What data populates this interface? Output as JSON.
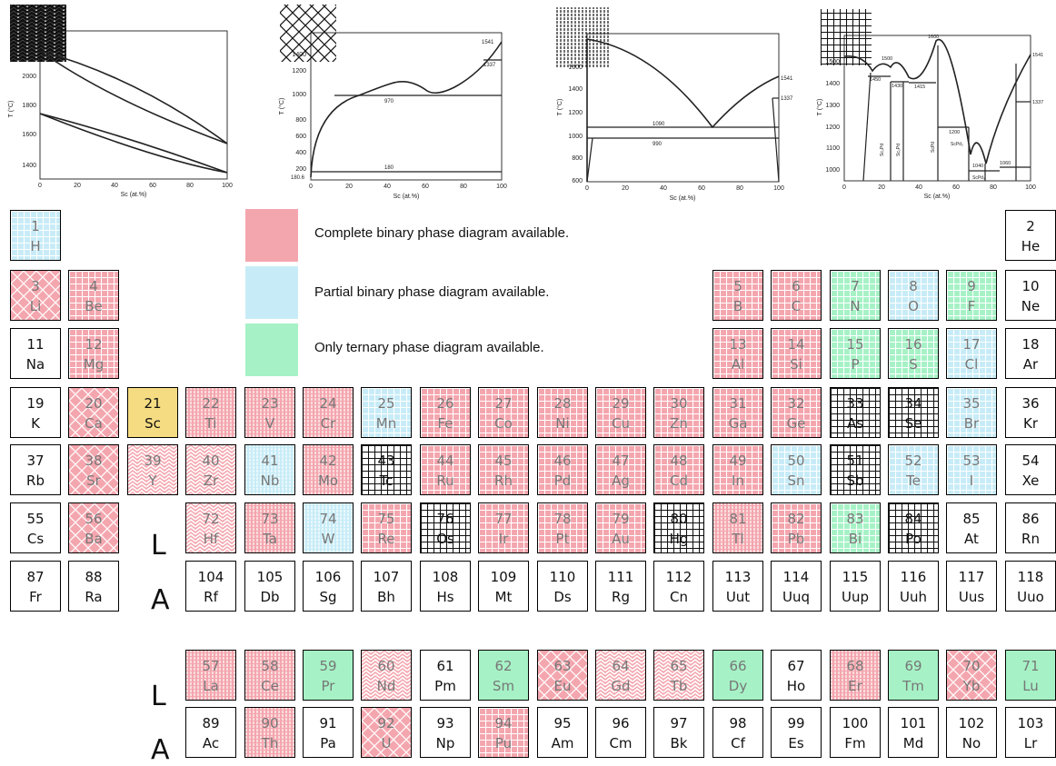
{
  "colors": {
    "complete": "#f4a6ae",
    "partial": "#c8ecf7",
    "ternary": "#a6f2c6",
    "reference": "#f5dc82",
    "none": "#ffffff",
    "pattern_ink_light": "#ffffff",
    "pattern_ink_dark": "#111111"
  },
  "legend": [
    {
      "status": "complete",
      "text": "Complete binary phase diagram available."
    },
    {
      "status": "partial",
      "text": "Partial binary phase diagram available."
    },
    {
      "status": "ternary",
      "text": "Only ternary phase diagram available."
    }
  ],
  "row_labels": {
    "lanthanide": "L",
    "actinide": "A"
  },
  "plots": [
    {
      "pattern": "chevron",
      "xlabel": "Sc (at.%)",
      "ylabel": "T (°C)",
      "xticks": [
        "0",
        "20",
        "40",
        "60",
        "80",
        "100"
      ],
      "yticks": [
        "1400",
        "1600",
        "1800",
        "2000"
      ],
      "annotations": []
    },
    {
      "pattern": "crosshatch",
      "xlabel": "Sc (at.%)",
      "ylabel": "T (°C)",
      "xticks": [
        "0",
        "20",
        "40",
        "60",
        "80",
        "100"
      ],
      "yticks": [
        "200",
        "400",
        "600",
        "800",
        "1000",
        "1200",
        "1400"
      ],
      "annotations": [
        "1541",
        "1337",
        "970",
        "180",
        "180.6"
      ]
    },
    {
      "pattern": "vlines",
      "xlabel": "Sc (at.%)",
      "ylabel": "T (°C)",
      "xticks": [
        "0",
        "20",
        "40",
        "60",
        "80",
        "100"
      ],
      "yticks": [
        "600",
        "800",
        "1000",
        "1200",
        "1400",
        "1600"
      ],
      "annotations": [
        "1541",
        "1337",
        "1090",
        "990"
      ]
    },
    {
      "pattern": "grid",
      "xlabel": "Sc (at.%)",
      "ylabel": "T (°C)",
      "xticks": [
        "0",
        "20",
        "40",
        "60",
        "80",
        "100"
      ],
      "yticks": [
        "1000",
        "1100",
        "1200",
        "1300",
        "1400",
        "1500"
      ],
      "annotations": [
        "1600",
        "1541",
        "1500",
        "1450",
        "1430",
        "1415",
        "1337",
        "1200",
        "1040",
        "1060",
        "Sc₃Pd",
        "Sc₂Pd",
        "ScPd",
        "ScPd₂",
        "ScPd₃"
      ]
    }
  ],
  "elements": [
    {
      "n": "1",
      "s": "H",
      "r": 0,
      "c": 0,
      "st": "partial",
      "p": "grid"
    },
    {
      "n": "2",
      "s": "He",
      "r": 0,
      "c": 17,
      "st": "none",
      "p": "none"
    },
    {
      "n": "3",
      "s": "Li",
      "r": 1,
      "c": 0,
      "st": "complete",
      "p": "crosshatch"
    },
    {
      "n": "4",
      "s": "Be",
      "r": 1,
      "c": 1,
      "st": "complete",
      "p": "grid"
    },
    {
      "n": "5",
      "s": "B",
      "r": 1,
      "c": 12,
      "st": "complete",
      "p": "grid"
    },
    {
      "n": "6",
      "s": "C",
      "r": 1,
      "c": 13,
      "st": "complete",
      "p": "grid"
    },
    {
      "n": "7",
      "s": "N",
      "r": 1,
      "c": 14,
      "st": "ternary",
      "p": "grid"
    },
    {
      "n": "8",
      "s": "O",
      "r": 1,
      "c": 15,
      "st": "partial",
      "p": "grid"
    },
    {
      "n": "9",
      "s": "F",
      "r": 1,
      "c": 16,
      "st": "ternary",
      "p": "grid"
    },
    {
      "n": "10",
      "s": "Ne",
      "r": 1,
      "c": 17,
      "st": "none",
      "p": "none"
    },
    {
      "n": "11",
      "s": "Na",
      "r": 2,
      "c": 0,
      "st": "none",
      "p": "none"
    },
    {
      "n": "12",
      "s": "Mg",
      "r": 2,
      "c": 1,
      "st": "complete",
      "p": "grid"
    },
    {
      "n": "13",
      "s": "Al",
      "r": 2,
      "c": 12,
      "st": "complete",
      "p": "grid"
    },
    {
      "n": "14",
      "s": "Si",
      "r": 2,
      "c": 13,
      "st": "complete",
      "p": "grid"
    },
    {
      "n": "15",
      "s": "P",
      "r": 2,
      "c": 14,
      "st": "ternary",
      "p": "grid"
    },
    {
      "n": "16",
      "s": "S",
      "r": 2,
      "c": 15,
      "st": "ternary",
      "p": "grid"
    },
    {
      "n": "17",
      "s": "Cl",
      "r": 2,
      "c": 16,
      "st": "partial",
      "p": "grid"
    },
    {
      "n": "18",
      "s": "Ar",
      "r": 2,
      "c": 17,
      "st": "none",
      "p": "none"
    },
    {
      "n": "19",
      "s": "K",
      "r": 3,
      "c": 0,
      "st": "none",
      "p": "none"
    },
    {
      "n": "20",
      "s": "Ca",
      "r": 3,
      "c": 1,
      "st": "complete",
      "p": "crosshatch"
    },
    {
      "n": "21",
      "s": "Sc",
      "r": 3,
      "c": 2,
      "st": "reference",
      "p": "none"
    },
    {
      "n": "22",
      "s": "Ti",
      "r": 3,
      "c": 3,
      "st": "complete",
      "p": "vlines"
    },
    {
      "n": "23",
      "s": "V",
      "r": 3,
      "c": 4,
      "st": "complete",
      "p": "vlines"
    },
    {
      "n": "24",
      "s": "Cr",
      "r": 3,
      "c": 5,
      "st": "complete",
      "p": "vlines"
    },
    {
      "n": "25",
      "s": "Mn",
      "r": 3,
      "c": 6,
      "st": "partial",
      "p": "grid"
    },
    {
      "n": "26",
      "s": "Fe",
      "r": 3,
      "c": 7,
      "st": "complete",
      "p": "grid"
    },
    {
      "n": "27",
      "s": "Co",
      "r": 3,
      "c": 8,
      "st": "complete",
      "p": "grid"
    },
    {
      "n": "28",
      "s": "Ni",
      "r": 3,
      "c": 9,
      "st": "complete",
      "p": "grid"
    },
    {
      "n": "29",
      "s": "Cu",
      "r": 3,
      "c": 10,
      "st": "complete",
      "p": "grid"
    },
    {
      "n": "30",
      "s": "Zn",
      "r": 3,
      "c": 11,
      "st": "complete",
      "p": "grid"
    },
    {
      "n": "31",
      "s": "Ga",
      "r": 3,
      "c": 12,
      "st": "complete",
      "p": "grid"
    },
    {
      "n": "32",
      "s": "Ge",
      "r": 3,
      "c": 13,
      "st": "complete",
      "p": "grid"
    },
    {
      "n": "33",
      "s": "As",
      "r": 3,
      "c": 14,
      "st": "none",
      "p": "grid"
    },
    {
      "n": "34",
      "s": "Se",
      "r": 3,
      "c": 15,
      "st": "none",
      "p": "grid"
    },
    {
      "n": "35",
      "s": "Br",
      "r": 3,
      "c": 16,
      "st": "partial",
      "p": "grid"
    },
    {
      "n": "36",
      "s": "Kr",
      "r": 3,
      "c": 17,
      "st": "none",
      "p": "none"
    },
    {
      "n": "37",
      "s": "Rb",
      "r": 4,
      "c": 0,
      "st": "none",
      "p": "none"
    },
    {
      "n": "38",
      "s": "Sr",
      "r": 4,
      "c": 1,
      "st": "complete",
      "p": "crosshatch"
    },
    {
      "n": "39",
      "s": "Y",
      "r": 4,
      "c": 2,
      "st": "complete",
      "p": "chevron"
    },
    {
      "n": "40",
      "s": "Zr",
      "r": 4,
      "c": 3,
      "st": "complete",
      "p": "chevron"
    },
    {
      "n": "41",
      "s": "Nb",
      "r": 4,
      "c": 4,
      "st": "partial",
      "p": "vlines"
    },
    {
      "n": "42",
      "s": "Mo",
      "r": 4,
      "c": 5,
      "st": "complete",
      "p": "vlines"
    },
    {
      "n": "43",
      "s": "Tc",
      "r": 4,
      "c": 6,
      "st": "none",
      "p": "grid"
    },
    {
      "n": "44",
      "s": "Ru",
      "r": 4,
      "c": 7,
      "st": "complete",
      "p": "grid"
    },
    {
      "n": "45",
      "s": "Rh",
      "r": 4,
      "c": 8,
      "st": "complete",
      "p": "grid"
    },
    {
      "n": "46",
      "s": "Pd",
      "r": 4,
      "c": 9,
      "st": "complete",
      "p": "grid"
    },
    {
      "n": "47",
      "s": "Ag",
      "r": 4,
      "c": 10,
      "st": "complete",
      "p": "grid"
    },
    {
      "n": "48",
      "s": "Cd",
      "r": 4,
      "c": 11,
      "st": "complete",
      "p": "grid"
    },
    {
      "n": "49",
      "s": "In",
      "r": 4,
      "c": 12,
      "st": "complete",
      "p": "grid"
    },
    {
      "n": "50",
      "s": "Sn",
      "r": 4,
      "c": 13,
      "st": "partial",
      "p": "grid"
    },
    {
      "n": "51",
      "s": "Sb",
      "r": 4,
      "c": 14,
      "st": "none",
      "p": "grid"
    },
    {
      "n": "52",
      "s": "Te",
      "r": 4,
      "c": 15,
      "st": "partial",
      "p": "grid"
    },
    {
      "n": "53",
      "s": "I",
      "r": 4,
      "c": 16,
      "st": "partial",
      "p": "grid"
    },
    {
      "n": "54",
      "s": "Xe",
      "r": 4,
      "c": 17,
      "st": "none",
      "p": "none"
    },
    {
      "n": "55",
      "s": "Cs",
      "r": 5,
      "c": 0,
      "st": "none",
      "p": "none"
    },
    {
      "n": "56",
      "s": "Ba",
      "r": 5,
      "c": 1,
      "st": "complete",
      "p": "crosshatch"
    },
    {
      "n": "72",
      "s": "Hf",
      "r": 5,
      "c": 3,
      "st": "complete",
      "p": "chevron"
    },
    {
      "n": "73",
      "s": "Ta",
      "r": 5,
      "c": 4,
      "st": "complete",
      "p": "vlines"
    },
    {
      "n": "74",
      "s": "W",
      "r": 5,
      "c": 5,
      "st": "partial",
      "p": "vlines"
    },
    {
      "n": "75",
      "s": "Re",
      "r": 5,
      "c": 6,
      "st": "complete",
      "p": "grid"
    },
    {
      "n": "76",
      "s": "Os",
      "r": 5,
      "c": 7,
      "st": "none",
      "p": "grid"
    },
    {
      "n": "77",
      "s": "Ir",
      "r": 5,
      "c": 8,
      "st": "complete",
      "p": "grid"
    },
    {
      "n": "78",
      "s": "Pt",
      "r": 5,
      "c": 9,
      "st": "complete",
      "p": "grid"
    },
    {
      "n": "79",
      "s": "Au",
      "r": 5,
      "c": 10,
      "st": "complete",
      "p": "grid"
    },
    {
      "n": "80",
      "s": "Hg",
      "r": 5,
      "c": 11,
      "st": "none",
      "p": "grid"
    },
    {
      "n": "81",
      "s": "Tl",
      "r": 5,
      "c": 12,
      "st": "complete",
      "p": "vlines"
    },
    {
      "n": "82",
      "s": "Pb",
      "r": 5,
      "c": 13,
      "st": "complete",
      "p": "grid"
    },
    {
      "n": "83",
      "s": "Bi",
      "r": 5,
      "c": 14,
      "st": "ternary",
      "p": "grid"
    },
    {
      "n": "84",
      "s": "Po",
      "r": 5,
      "c": 15,
      "st": "none",
      "p": "grid"
    },
    {
      "n": "85",
      "s": "At",
      "r": 5,
      "c": 16,
      "st": "none",
      "p": "none"
    },
    {
      "n": "86",
      "s": "Rn",
      "r": 5,
      "c": 17,
      "st": "none",
      "p": "none"
    },
    {
      "n": "87",
      "s": "Fr",
      "r": 6,
      "c": 0,
      "st": "none",
      "p": "none"
    },
    {
      "n": "88",
      "s": "Ra",
      "r": 6,
      "c": 1,
      "st": "none",
      "p": "none"
    },
    {
      "n": "104",
      "s": "Rf",
      "r": 6,
      "c": 3,
      "st": "none",
      "p": "none"
    },
    {
      "n": "105",
      "s": "Db",
      "r": 6,
      "c": 4,
      "st": "none",
      "p": "none"
    },
    {
      "n": "106",
      "s": "Sg",
      "r": 6,
      "c": 5,
      "st": "none",
      "p": "none"
    },
    {
      "n": "107",
      "s": "Bh",
      "r": 6,
      "c": 6,
      "st": "none",
      "p": "none"
    },
    {
      "n": "108",
      "s": "Hs",
      "r": 6,
      "c": 7,
      "st": "none",
      "p": "none"
    },
    {
      "n": "109",
      "s": "Mt",
      "r": 6,
      "c": 8,
      "st": "none",
      "p": "none"
    },
    {
      "n": "110",
      "s": "Ds",
      "r": 6,
      "c": 9,
      "st": "none",
      "p": "none"
    },
    {
      "n": "111",
      "s": "Rg",
      "r": 6,
      "c": 10,
      "st": "none",
      "p": "none"
    },
    {
      "n": "112",
      "s": "Cn",
      "r": 6,
      "c": 11,
      "st": "none",
      "p": "none"
    },
    {
      "n": "113",
      "s": "Uut",
      "r": 6,
      "c": 12,
      "st": "none",
      "p": "none"
    },
    {
      "n": "114",
      "s": "Uuq",
      "r": 6,
      "c": 13,
      "st": "none",
      "p": "none"
    },
    {
      "n": "115",
      "s": "Uup",
      "r": 6,
      "c": 14,
      "st": "none",
      "p": "none"
    },
    {
      "n": "116",
      "s": "Uuh",
      "r": 6,
      "c": 15,
      "st": "none",
      "p": "none"
    },
    {
      "n": "117",
      "s": "Uus",
      "r": 6,
      "c": 16,
      "st": "none",
      "p": "none"
    },
    {
      "n": "118",
      "s": "Uuo",
      "r": 6,
      "c": 17,
      "st": "none",
      "p": "none"
    },
    {
      "n": "57",
      "s": "La",
      "r": 7,
      "c": 3,
      "st": "complete",
      "p": "vlines"
    },
    {
      "n": "58",
      "s": "Ce",
      "r": 7,
      "c": 4,
      "st": "complete",
      "p": "vlines"
    },
    {
      "n": "59",
      "s": "Pr",
      "r": 7,
      "c": 5,
      "st": "ternary",
      "p": "none"
    },
    {
      "n": "60",
      "s": "Nd",
      "r": 7,
      "c": 6,
      "st": "complete",
      "p": "chevron"
    },
    {
      "n": "61",
      "s": "Pm",
      "r": 7,
      "c": 7,
      "st": "none",
      "p": "none"
    },
    {
      "n": "62",
      "s": "Sm",
      "r": 7,
      "c": 8,
      "st": "ternary",
      "p": "none"
    },
    {
      "n": "63",
      "s": "Eu",
      "r": 7,
      "c": 9,
      "st": "complete",
      "p": "crosshatch"
    },
    {
      "n": "64",
      "s": "Gd",
      "r": 7,
      "c": 10,
      "st": "complete",
      "p": "chevron"
    },
    {
      "n": "65",
      "s": "Tb",
      "r": 7,
      "c": 11,
      "st": "complete",
      "p": "chevron"
    },
    {
      "n": "66",
      "s": "Dy",
      "r": 7,
      "c": 12,
      "st": "ternary",
      "p": "none"
    },
    {
      "n": "67",
      "s": "Ho",
      "r": 7,
      "c": 13,
      "st": "none",
      "p": "none"
    },
    {
      "n": "68",
      "s": "Er",
      "r": 7,
      "c": 14,
      "st": "complete",
      "p": "vlines"
    },
    {
      "n": "69",
      "s": "Tm",
      "r": 7,
      "c": 15,
      "st": "ternary",
      "p": "none"
    },
    {
      "n": "70",
      "s": "Yb",
      "r": 7,
      "c": 16,
      "st": "complete",
      "p": "crosshatch"
    },
    {
      "n": "71",
      "s": "Lu",
      "r": 7,
      "c": 17,
      "st": "ternary",
      "p": "none"
    },
    {
      "n": "89",
      "s": "Ac",
      "r": 8,
      "c": 3,
      "st": "none",
      "p": "none"
    },
    {
      "n": "90",
      "s": "Th",
      "r": 8,
      "c": 4,
      "st": "complete",
      "p": "vlines"
    },
    {
      "n": "91",
      "s": "Pa",
      "r": 8,
      "c": 5,
      "st": "none",
      "p": "none"
    },
    {
      "n": "92",
      "s": "U",
      "r": 8,
      "c": 6,
      "st": "complete",
      "p": "crosshatch"
    },
    {
      "n": "93",
      "s": "Np",
      "r": 8,
      "c": 7,
      "st": "none",
      "p": "none"
    },
    {
      "n": "94",
      "s": "Pu",
      "r": 8,
      "c": 8,
      "st": "complete",
      "p": "grid"
    },
    {
      "n": "95",
      "s": "Am",
      "r": 8,
      "c": 9,
      "st": "none",
      "p": "none"
    },
    {
      "n": "96",
      "s": "Cm",
      "r": 8,
      "c": 10,
      "st": "none",
      "p": "none"
    },
    {
      "n": "97",
      "s": "Bk",
      "r": 8,
      "c": 11,
      "st": "none",
      "p": "none"
    },
    {
      "n": "98",
      "s": "Cf",
      "r": 8,
      "c": 12,
      "st": "none",
      "p": "none"
    },
    {
      "n": "99",
      "s": "Es",
      "r": 8,
      "c": 13,
      "st": "none",
      "p": "none"
    },
    {
      "n": "100",
      "s": "Fm",
      "r": 8,
      "c": 14,
      "st": "none",
      "p": "none"
    },
    {
      "n": "101",
      "s": "Md",
      "r": 8,
      "c": 15,
      "st": "none",
      "p": "none"
    },
    {
      "n": "102",
      "s": "No",
      "r": 8,
      "c": 16,
      "st": "none",
      "p": "none"
    },
    {
      "n": "103",
      "s": "Lr",
      "r": 8,
      "c": 17,
      "st": "none",
      "p": "none"
    }
  ]
}
